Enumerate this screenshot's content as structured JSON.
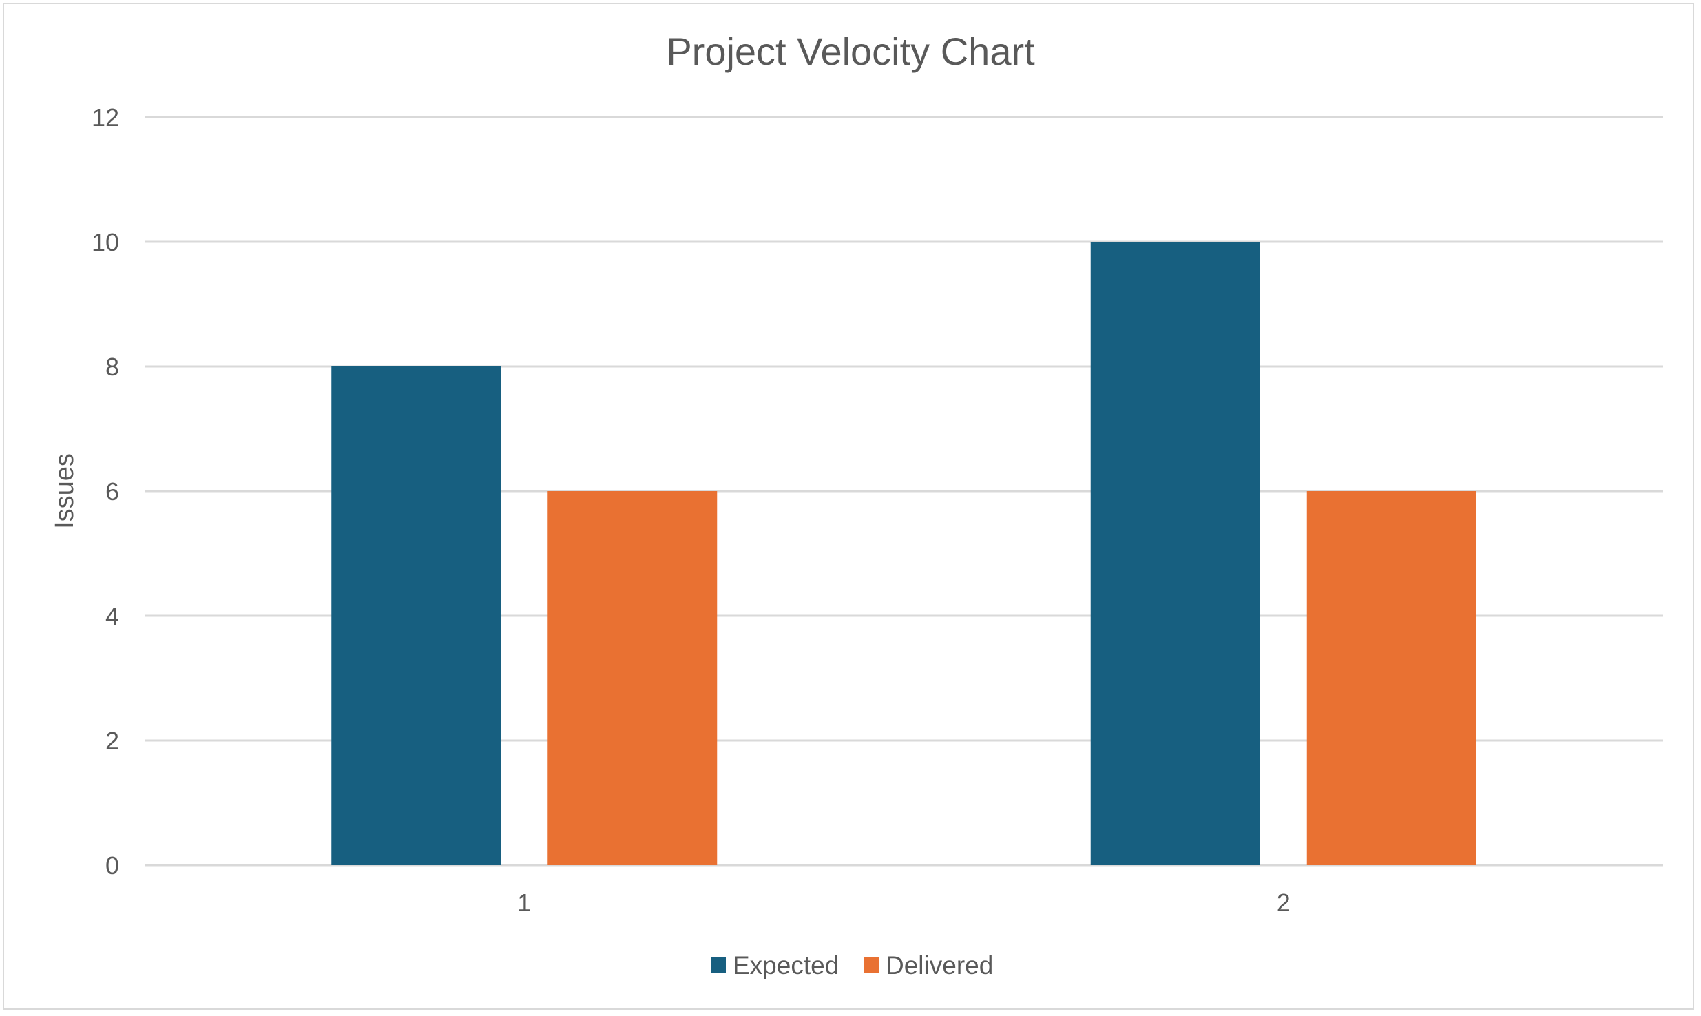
{
  "chart_data": {
    "type": "bar",
    "title": "Project Velocity Chart",
    "xlabel": "",
    "ylabel": "Issues",
    "categories": [
      "1",
      "2"
    ],
    "series": [
      {
        "name": "Expected",
        "values": [
          8,
          10
        ],
        "color": "#175f80"
      },
      {
        "name": "Delivered",
        "values": [
          6,
          6
        ],
        "color": "#e97132"
      }
    ],
    "ylim": [
      0,
      12
    ],
    "yticks": [
      0,
      2,
      4,
      6,
      8,
      10,
      12
    ],
    "grid": true,
    "legend_position": "bottom"
  }
}
